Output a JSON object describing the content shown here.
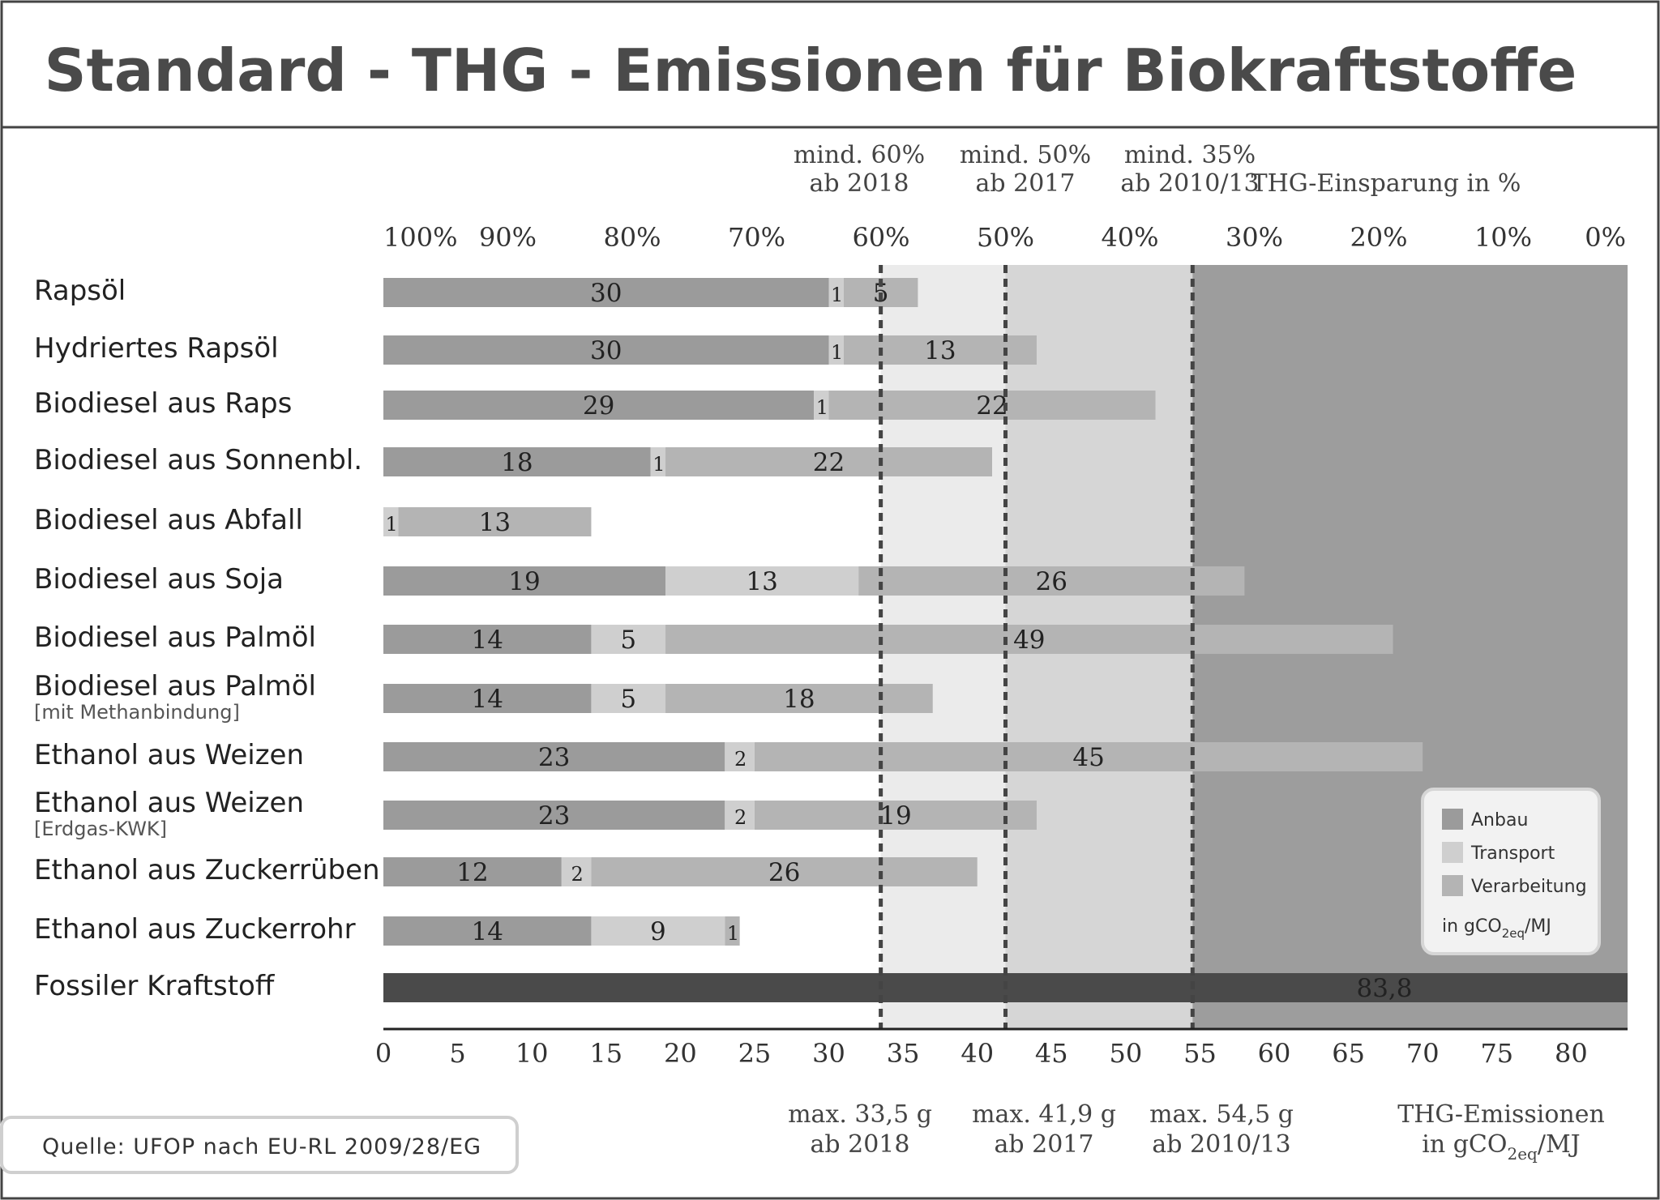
{
  "title": "Standard - THG - Emissionen für Biokraftstoffe",
  "source_text": "Quelle: UFOP nach EU-RL 2009/28/EG",
  "top_axis_title": "THG-Einsparung in %",
  "top_axis_ticks": [
    "100%",
    "90%",
    "80%",
    "70%",
    "60%",
    "50%",
    "40%",
    "30%",
    "20%",
    "10%",
    "0%"
  ],
  "bottom_axis_title_line1": "THG-Emissionen",
  "bottom_axis_title_line2_pre": "in gCO",
  "bottom_axis_title_line2_sub": "2eq",
  "bottom_axis_title_line2_post": "/MJ",
  "bottom_axis_ticks": [
    "0",
    "5",
    "10",
    "15",
    "20",
    "25",
    "30",
    "35",
    "40",
    "45",
    "50",
    "55",
    "60",
    "65",
    "70",
    "75",
    "80"
  ],
  "thresholds": [
    {
      "value": 33.5,
      "top_line1": "mind. 60%",
      "top_line2": "ab 2018",
      "bottom_line1": "max. 33,5 g",
      "bottom_line2": "ab 2018"
    },
    {
      "value": 41.9,
      "top_line1": "mind. 50%",
      "top_line2": "ab 2017",
      "bottom_line1": "max. 41,9 g",
      "bottom_line2": "ab 2017"
    },
    {
      "value": 54.5,
      "top_line1": "mind. 35%",
      "top_line2": "ab 2010/13",
      "bottom_line1": "max. 54,5 g",
      "bottom_line2": "ab 2010/13"
    }
  ],
  "legend": {
    "items": [
      "Anbau",
      "Transport",
      "Verarbeitung"
    ],
    "unit_pre": "in gCO",
    "unit_sub": "2eq",
    "unit_post": "/MJ"
  },
  "colors": {
    "anbau": "#9b9b9b",
    "transport": "#cfcfcf",
    "verarbeitung": "#b4b4b4",
    "fossil": "#4a4a4a",
    "zone_60_50": "#ebebeb",
    "zone_50_35": "#d6d6d6",
    "zone_35_0": "#9d9d9d",
    "text": "#333333",
    "frame": "#444444"
  },
  "chart_data": {
    "type": "bar",
    "orientation": "horizontal",
    "stacked": true,
    "title": "Standard - THG - Emissionen für Biokraftstoffe",
    "xlabel": "THG-Emissionen in gCO2eq/MJ",
    "x2label": "THG-Einsparung in %",
    "xlim": [
      0,
      83.8
    ],
    "categories": [
      {
        "label": "Rapsöl",
        "sublabel": ""
      },
      {
        "label": "Hydriertes Rapsöl",
        "sublabel": ""
      },
      {
        "label": "Biodiesel aus Raps",
        "sublabel": ""
      },
      {
        "label": "Biodiesel aus Sonnenbl.",
        "sublabel": ""
      },
      {
        "label": "Biodiesel aus Abfall",
        "sublabel": ""
      },
      {
        "label": "Biodiesel aus Soja",
        "sublabel": ""
      },
      {
        "label": "Biodiesel aus Palmöl",
        "sublabel": ""
      },
      {
        "label": "Biodiesel aus Palmöl",
        "sublabel": "[mit Methanbindung]"
      },
      {
        "label": "Ethanol aus Weizen",
        "sublabel": ""
      },
      {
        "label": "Ethanol aus Weizen",
        "sublabel": "[Erdgas-KWK]"
      },
      {
        "label": "Ethanol aus Zuckerrüben",
        "sublabel": ""
      },
      {
        "label": "Ethanol aus Zuckerrohr",
        "sublabel": ""
      },
      {
        "label": "Fossiler Kraftstoff",
        "sublabel": ""
      }
    ],
    "series": [
      {
        "name": "Anbau",
        "values": [
          30,
          30,
          29,
          18,
          0,
          19,
          14,
          14,
          23,
          23,
          12,
          14,
          null
        ]
      },
      {
        "name": "Transport",
        "values": [
          1,
          1,
          1,
          1,
          1,
          13,
          5,
          5,
          2,
          2,
          2,
          9,
          null
        ]
      },
      {
        "name": "Verarbeitung",
        "values": [
          5,
          13,
          22,
          22,
          13,
          26,
          49,
          18,
          45,
          19,
          26,
          1,
          null
        ]
      }
    ],
    "segment_labels": [
      [
        "30",
        "1",
        "5"
      ],
      [
        "30",
        "1",
        "13"
      ],
      [
        "29",
        "1",
        "22"
      ],
      [
        "18",
        "1",
        "22"
      ],
      [
        "",
        "1",
        "13"
      ],
      [
        "19",
        "13",
        "26"
      ],
      [
        "14",
        "5",
        "49"
      ],
      [
        "14",
        "5",
        "18"
      ],
      [
        "23",
        "2",
        "45"
      ],
      [
        "23",
        "2",
        "19"
      ],
      [
        "12",
        "2",
        "26"
      ],
      [
        "14",
        "9",
        "1"
      ]
    ],
    "fossil": {
      "value": 83.8,
      "label": "83,8"
    }
  }
}
